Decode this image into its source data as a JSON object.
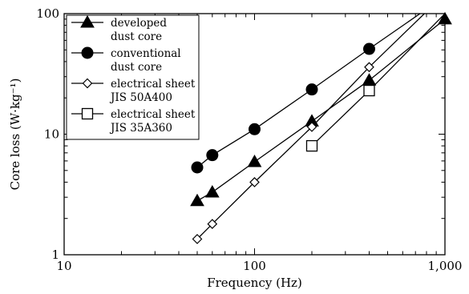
{
  "chart_data": {
    "type": "line",
    "xscale": "log",
    "yscale": "log",
    "xlim": [
      10,
      1000
    ],
    "ylim": [
      1,
      100
    ],
    "xlabel": "Frequency  (Hz)",
    "ylabel": "Core loss  (W·kg⁻¹)",
    "xticks": [
      {
        "value": 10,
        "label": "10"
      },
      {
        "value": 100,
        "label": "100"
      },
      {
        "value": 1000,
        "label": "1,000"
      }
    ],
    "yticks": [
      {
        "value": 1,
        "label": "1"
      },
      {
        "value": 10,
        "label": "10"
      },
      {
        "value": 100,
        "label": "100"
      }
    ],
    "grid": false,
    "legend_position": "top-left",
    "series": [
      {
        "name": [
          "developed",
          "dust core"
        ],
        "marker": "triangle-filled",
        "points": [
          [
            50,
            2.8
          ],
          [
            60,
            3.3
          ],
          [
            100,
            5.9
          ],
          [
            200,
            12.8
          ],
          [
            400,
            28
          ],
          [
            1000,
            90
          ]
        ]
      },
      {
        "name": [
          "conventional",
          "dust core"
        ],
        "marker": "circle-filled",
        "points": [
          [
            50,
            5.3
          ],
          [
            60,
            6.7
          ],
          [
            100,
            11
          ],
          [
            200,
            23.5
          ],
          [
            400,
            51
          ],
          [
            740,
            100
          ]
        ]
      },
      {
        "name": [
          "electrical sheet",
          "JIS 50A400"
        ],
        "marker": "diamond-open",
        "points": [
          [
            50,
            1.35
          ],
          [
            60,
            1.8
          ],
          [
            100,
            4.0
          ],
          [
            200,
            11.5
          ],
          [
            400,
            36
          ],
          [
            780,
            100
          ]
        ]
      },
      {
        "name": [
          "electrical sheet",
          "JIS 35A360"
        ],
        "marker": "square-open",
        "points": [
          [
            200,
            8.0
          ],
          [
            400,
            23
          ],
          [
            1000,
            100
          ]
        ]
      }
    ]
  }
}
